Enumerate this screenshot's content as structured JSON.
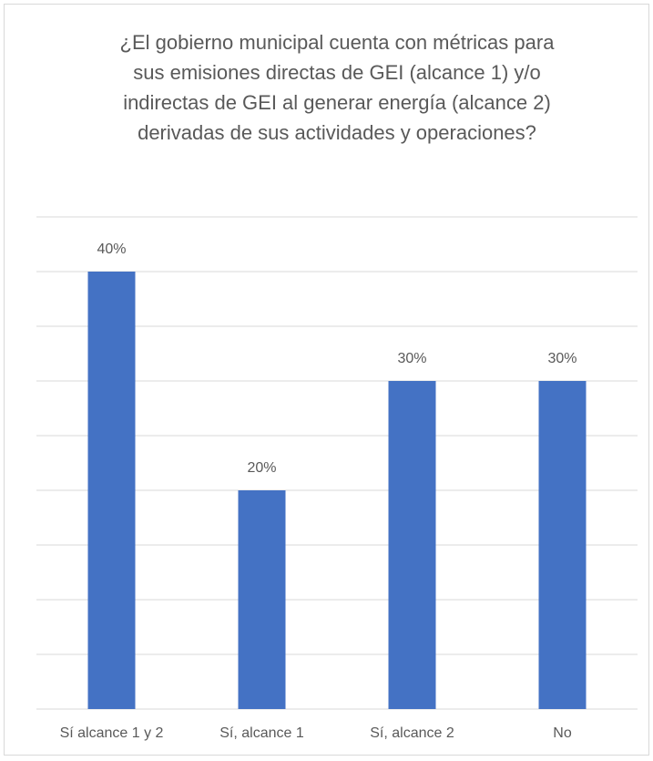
{
  "chart_data": {
    "type": "bar",
    "title": "¿El gobierno municipal cuenta con métricas para sus emisiones directas de GEI (alcance 1) y/o indirectas de GEI al generar energía (alcance 2) derivadas de sus actividades y operaciones?",
    "categories": [
      "Sí alcance 1 y 2",
      "Sí, alcance 1",
      "Sí, alcance 2",
      "No"
    ],
    "values": [
      40,
      20,
      30,
      30
    ],
    "value_labels": [
      "40%",
      "20%",
      "30%",
      "30%"
    ],
    "color": "#4472c4",
    "ylim": [
      0,
      45
    ],
    "yticks": [
      0,
      5,
      10,
      15,
      20,
      25,
      30,
      35,
      40,
      45
    ],
    "grid": true
  }
}
